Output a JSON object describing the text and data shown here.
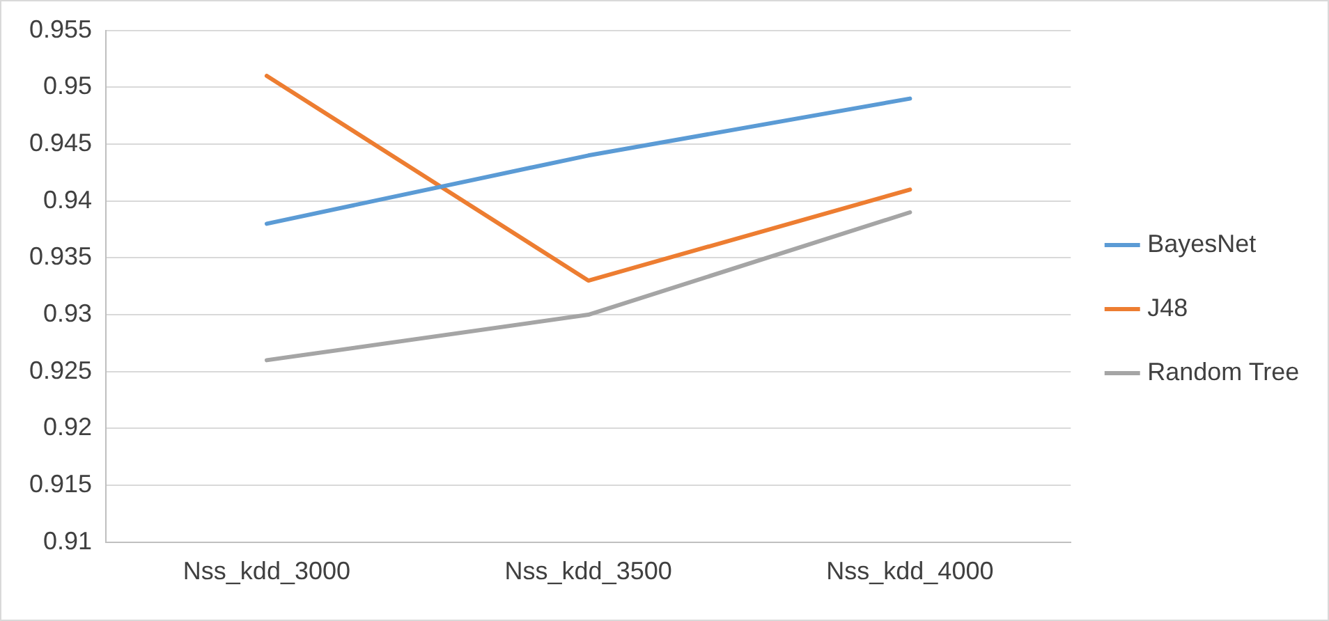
{
  "chart_data": {
    "type": "line",
    "categories": [
      "Nss_kdd_3000",
      "Nss_kdd_3500",
      "Nss_kdd_4000"
    ],
    "series": [
      {
        "name": "BayesNet",
        "color": "#5b9bd5",
        "values": [
          0.938,
          0.944,
          0.949
        ]
      },
      {
        "name": "J48",
        "color": "#ed7d31",
        "values": [
          0.951,
          0.933,
          0.941
        ]
      },
      {
        "name": "Random Tree",
        "color": "#a5a5a5",
        "values": [
          0.926,
          0.93,
          0.939
        ]
      }
    ],
    "ylim": [
      0.91,
      0.955
    ],
    "yticks": [
      0.91,
      0.915,
      0.92,
      0.925,
      0.93,
      0.935,
      0.94,
      0.945,
      0.95,
      0.955
    ],
    "grid": "y",
    "legend": "right",
    "marker": "none",
    "line_style": "solid"
  }
}
